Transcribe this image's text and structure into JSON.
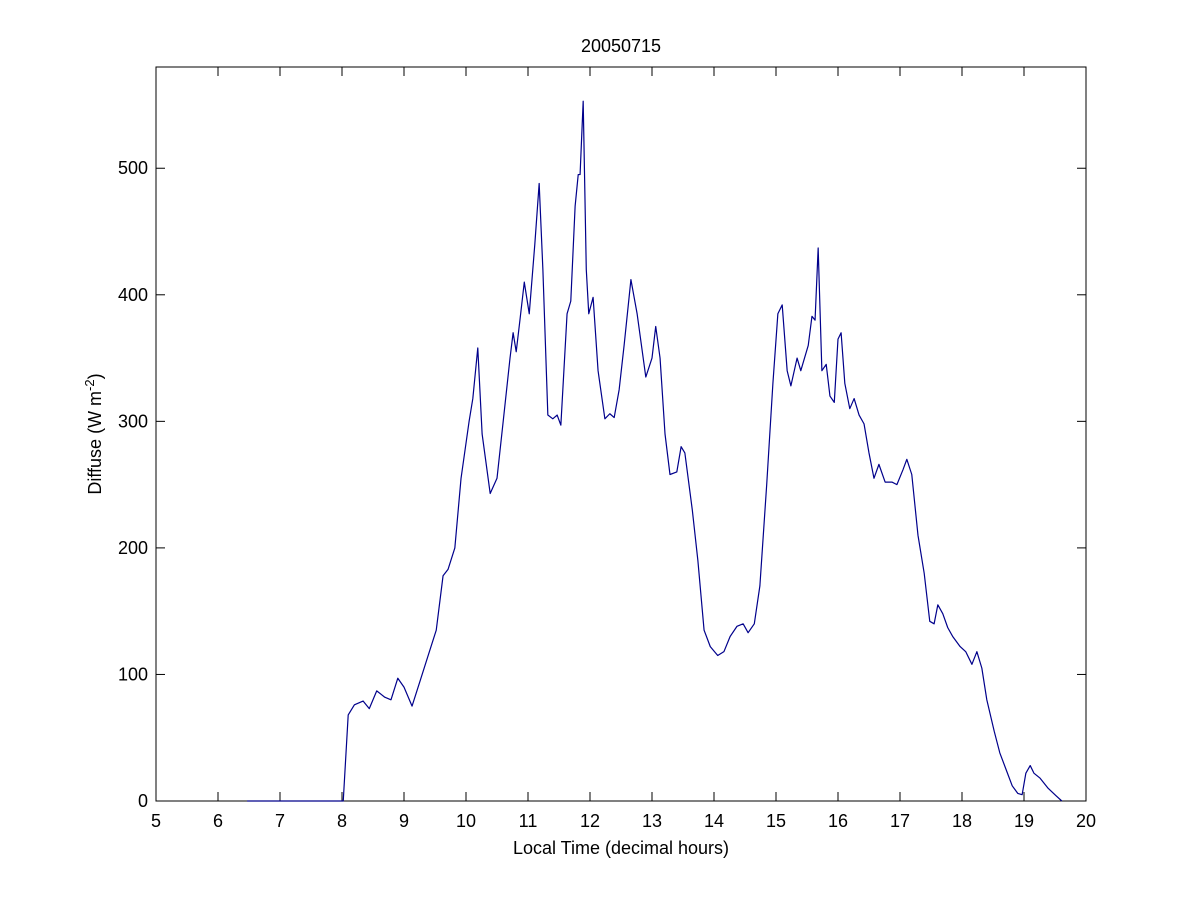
{
  "chart_data": {
    "type": "line",
    "title": "20050715",
    "xlabel": "Local Time (decimal hours)",
    "ylabel": {
      "text": "Diffuse (W m",
      "superscript": "-2",
      "suffix": ")"
    },
    "color": "#00008b",
    "xlim": [
      5,
      20
    ],
    "xticks": [
      5,
      6,
      7,
      8,
      9,
      10,
      11,
      12,
      13,
      14,
      15,
      16,
      17,
      18,
      19,
      20
    ],
    "ylim": [
      0,
      580
    ],
    "yticks": [
      0,
      100,
      200,
      300,
      400,
      500
    ],
    "x": [
      6.47,
      8.02,
      8.1,
      8.2,
      8.34,
      8.44,
      8.56,
      8.69,
      8.79,
      8.9,
      9.0,
      9.13,
      9.26,
      9.39,
      9.52,
      9.63,
      9.71,
      9.82,
      9.92,
      10.05,
      10.11,
      10.19,
      10.26,
      10.39,
      10.5,
      10.6,
      10.71,
      10.76,
      10.81,
      10.87,
      10.94,
      11.02,
      11.11,
      11.18,
      11.24,
      11.32,
      11.4,
      11.47,
      11.53,
      11.63,
      11.69,
      11.76,
      11.81,
      11.84,
      11.89,
      11.94,
      11.98,
      12.05,
      12.13,
      12.24,
      12.32,
      12.39,
      12.47,
      12.55,
      12.66,
      12.76,
      12.9,
      13.0,
      13.06,
      13.13,
      13.21,
      13.29,
      13.4,
      13.47,
      13.53,
      13.65,
      13.74,
      13.84,
      13.94,
      14.06,
      14.16,
      14.26,
      14.37,
      14.47,
      14.55,
      14.65,
      14.74,
      14.85,
      14.95,
      15.03,
      15.1,
      15.18,
      15.24,
      15.34,
      15.4,
      15.52,
      15.58,
      15.63,
      15.68,
      15.74,
      15.81,
      15.87,
      15.94,
      16.0,
      16.05,
      16.11,
      16.19,
      16.26,
      16.34,
      16.42,
      16.5,
      16.58,
      16.66,
      16.76,
      16.87,
      16.95,
      17.05,
      17.11,
      17.19,
      17.29,
      17.39,
      17.48,
      17.55,
      17.61,
      17.69,
      17.77,
      17.85,
      17.97,
      18.06,
      18.16,
      18.24,
      18.32,
      18.4,
      18.52,
      18.61,
      18.71,
      18.81,
      18.9,
      18.97,
      19.03,
      19.1,
      19.16,
      19.26,
      19.39,
      19.52,
      19.61
    ],
    "values": [
      0,
      0,
      68,
      76,
      79,
      73,
      87,
      82,
      80,
      97,
      90,
      75,
      95,
      115,
      135,
      178,
      183,
      200,
      255,
      300,
      318,
      358,
      290,
      243,
      255,
      300,
      350,
      370,
      355,
      380,
      410,
      385,
      440,
      488,
      420,
      305,
      302,
      305,
      297,
      385,
      395,
      470,
      495,
      495,
      553,
      420,
      385,
      398,
      340,
      302,
      306,
      303,
      325,
      360,
      412,
      385,
      335,
      350,
      375,
      350,
      290,
      258,
      260,
      280,
      275,
      230,
      190,
      135,
      122,
      115,
      118,
      130,
      138,
      140,
      133,
      140,
      170,
      250,
      330,
      385,
      392,
      340,
      328,
      350,
      340,
      360,
      383,
      380,
      437,
      340,
      345,
      320,
      315,
      365,
      370,
      330,
      310,
      318,
      305,
      298,
      275,
      255,
      266,
      252,
      252,
      250,
      262,
      270,
      258,
      210,
      180,
      142,
      140,
      155,
      148,
      137,
      130,
      122,
      118,
      108,
      118,
      105,
      80,
      55,
      38,
      25,
      12,
      6,
      5,
      22,
      28,
      22,
      18,
      10,
      4,
      0
    ]
  }
}
